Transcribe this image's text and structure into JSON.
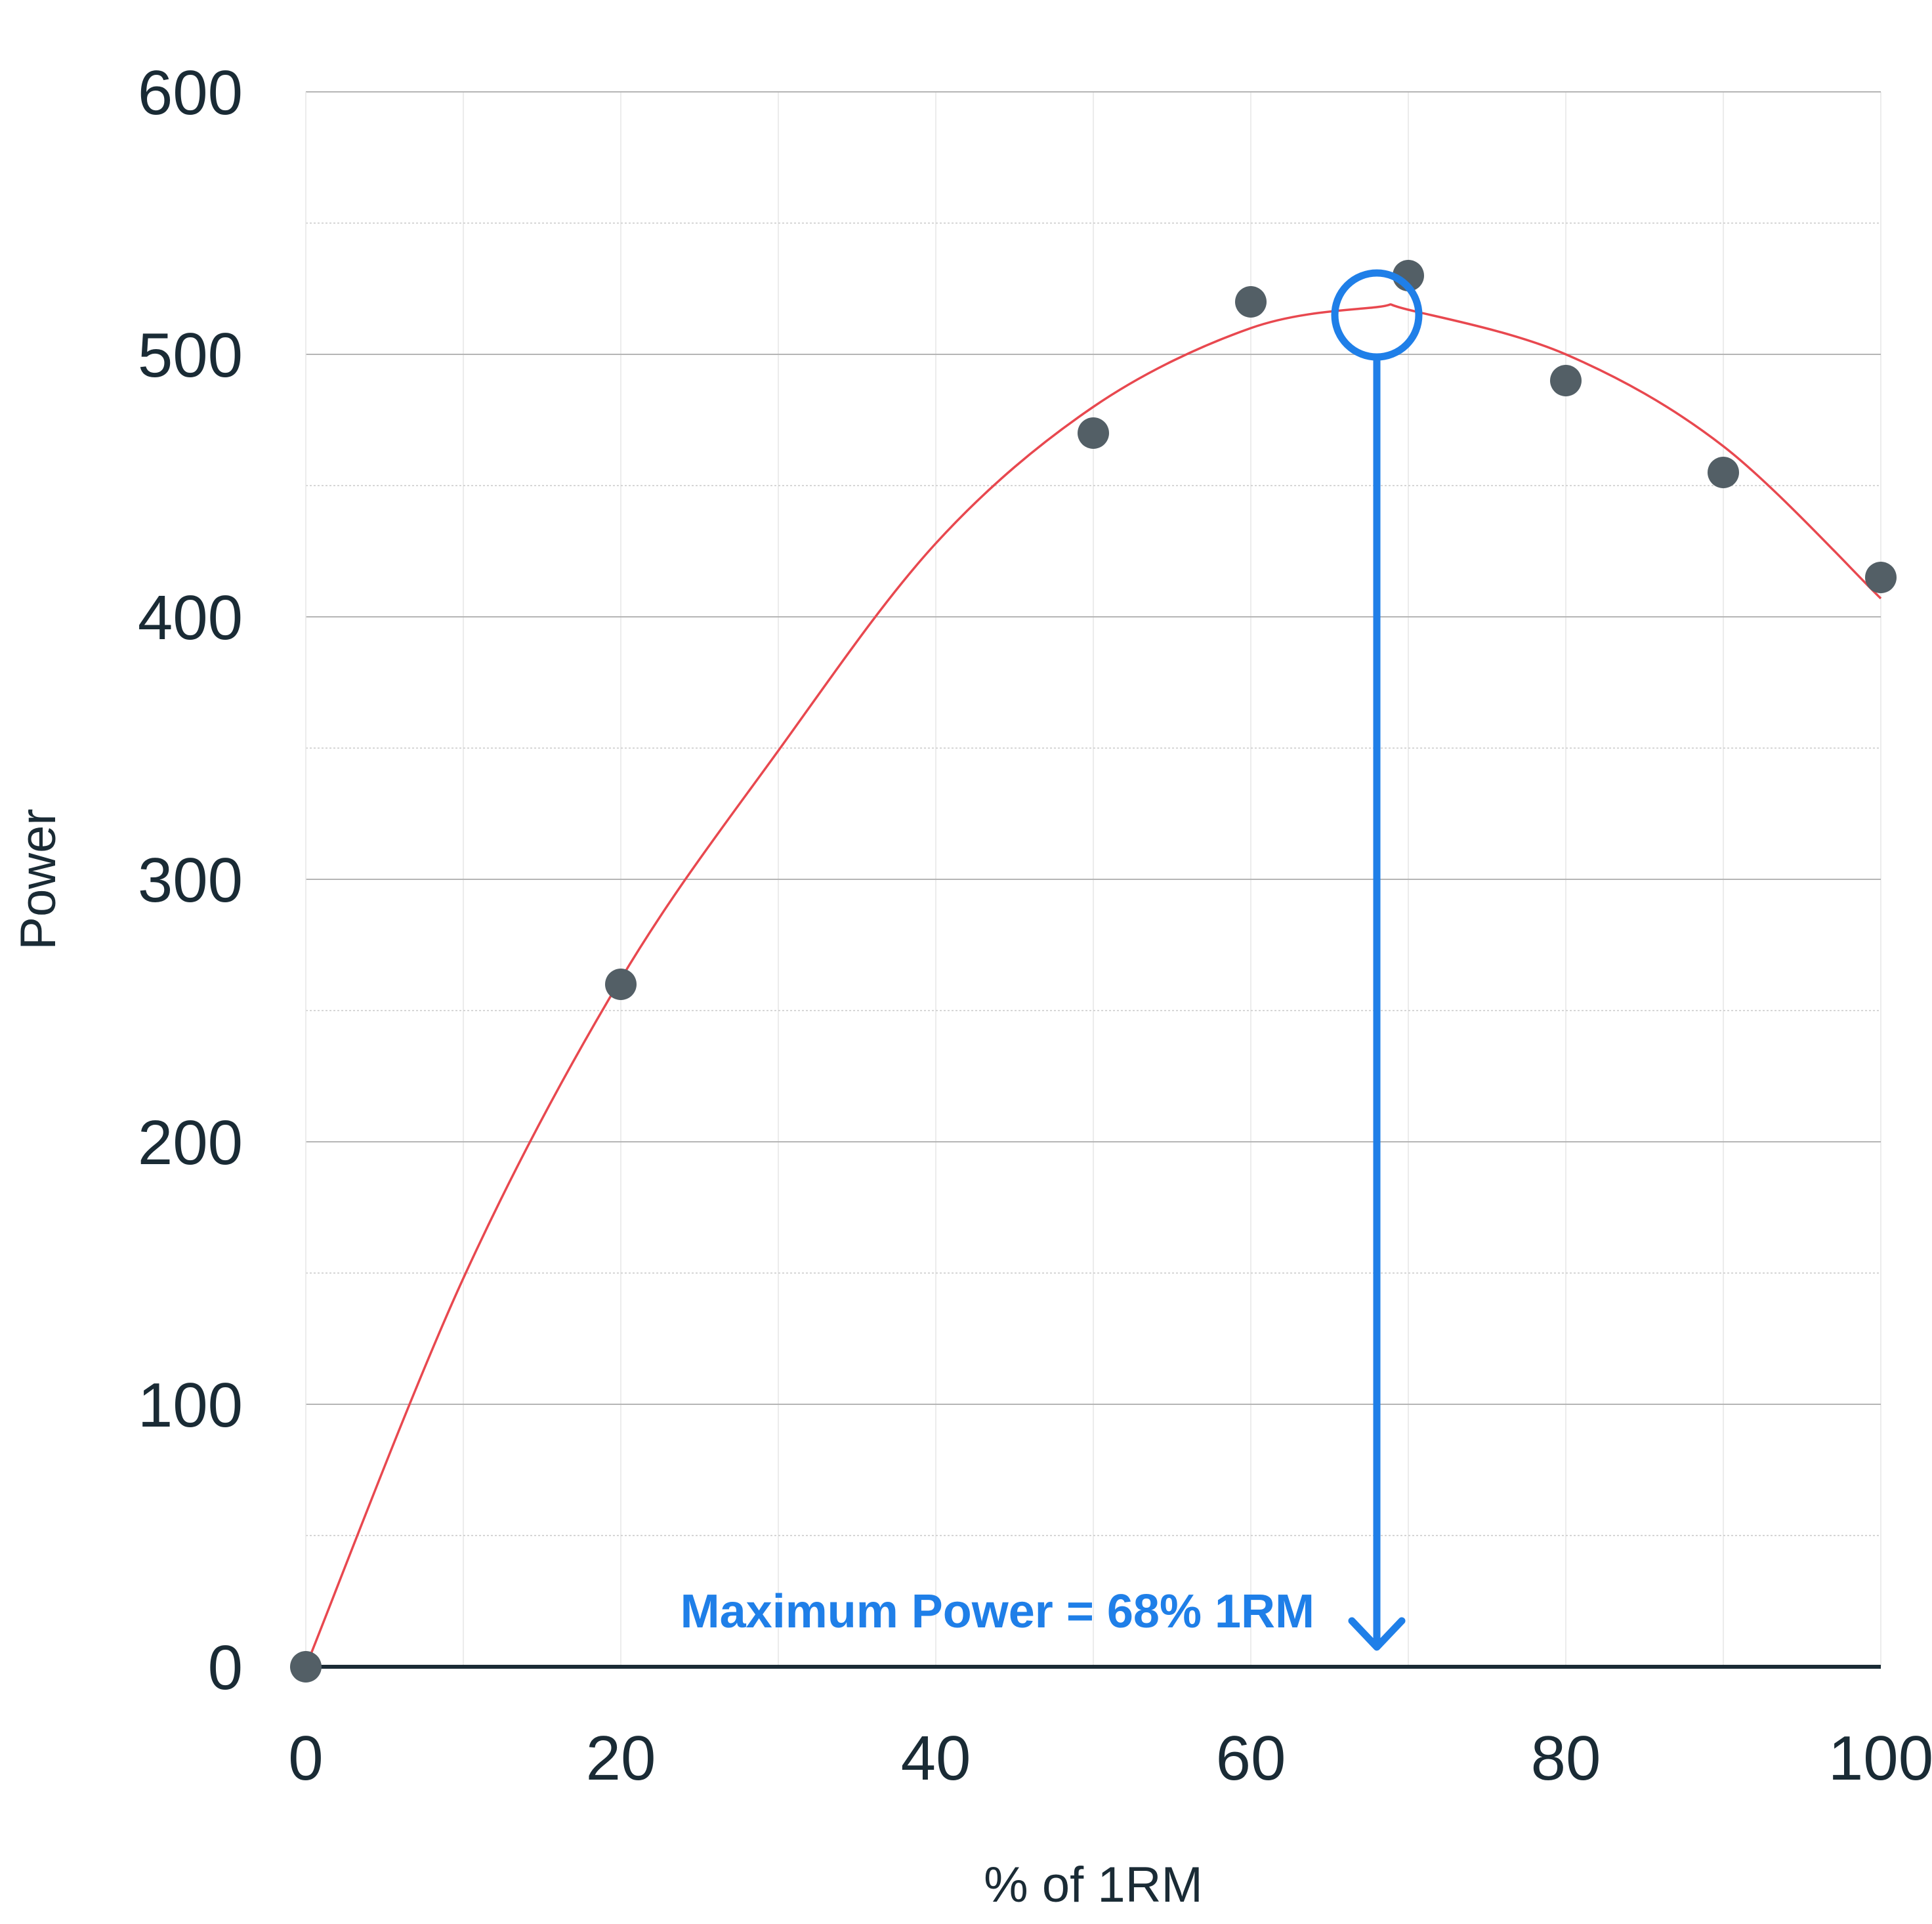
{
  "chart_data": {
    "type": "scatter",
    "title": "",
    "xlabel": "% of 1RM",
    "ylabel": "Power",
    "xlim": [
      0,
      100
    ],
    "ylim": [
      0,
      600
    ],
    "x_ticks": [
      0,
      20,
      40,
      60,
      80,
      100
    ],
    "y_ticks": [
      0,
      100,
      200,
      300,
      400,
      500,
      600
    ],
    "grid": true,
    "legend": "none",
    "series": [
      {
        "type": "scatter",
        "x": [
          0,
          20,
          50,
          60,
          70,
          80,
          90,
          100
        ],
        "y": [
          0,
          260,
          470,
          520,
          530,
          490,
          455,
          415
        ],
        "color": "#535f66"
      },
      {
        "type": "line",
        "style": "quadratic fit",
        "x": [
          0,
          10,
          20,
          30,
          40,
          50,
          60,
          68,
          70,
          80,
          90,
          100
        ],
        "y": [
          0,
          148,
          262,
          349,
          428,
          480,
          510,
          518,
          517,
          500,
          465,
          407
        ],
        "color": "#e8484f"
      }
    ],
    "annotation": {
      "text": "Maximum Power = 68% 1RM",
      "x": 68,
      "y": 515,
      "color": "#1f7fe8"
    }
  }
}
